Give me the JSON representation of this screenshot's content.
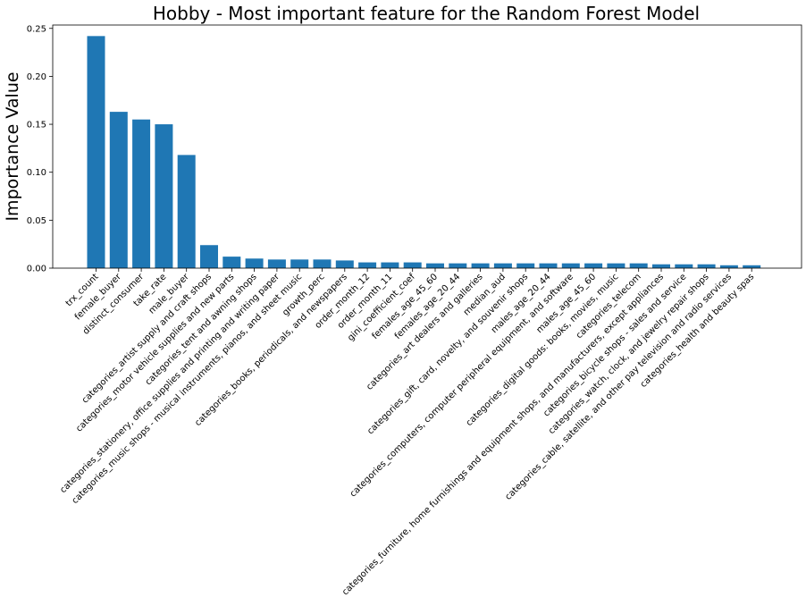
{
  "chart_data": {
    "type": "bar",
    "title": "Hobby - Most important feature for the Random Forest Model",
    "xlabel": "",
    "ylabel": "Importance Value",
    "ylim": [
      0,
      0.25
    ],
    "yticks": [
      "0.00",
      "0.05",
      "0.10",
      "0.15",
      "0.20",
      "0.25"
    ],
    "grid": false,
    "bar_color": "#1f77b4",
    "categories": [
      "trx_count",
      "female_buyer",
      "distinct_consumer",
      "take_rate",
      "male_buyer",
      "categories_artist supply and craft shops",
      "categories_motor vehicle supplies and new parts",
      "categories_tent and awning shops",
      "categories_stationery, office supplies and printing and writing paper",
      "categories_music shops - musical instruments, pianos, and sheet music",
      "growth_perc",
      "categories_books, periodicals, and newspapers",
      "order_month_12",
      "order_month_11",
      "gini_coefficient_coef",
      "females_age_45_60",
      "females_age_20_44",
      "categories_art dealers and galleries",
      "median_aud",
      "categories_gift, card, novelty, and souvenir shops",
      "males_age_20_44",
      "categories_computers, computer peripheral equipment, and software",
      "males_age_45_60",
      "categories_digital goods: books, movies, music",
      "categories_telecom",
      "categories_furniture, home furnishings and equipment shops, and manufacturers, except appliances",
      "categories_bicycle shops - sales and service",
      "categories_watch, clock, and jewelry repair shops",
      "categories_cable, satellite, and other pay television and radio services",
      "categories_health and beauty spas"
    ],
    "values": [
      0.242,
      0.163,
      0.155,
      0.15,
      0.118,
      0.024,
      0.012,
      0.01,
      0.009,
      0.009,
      0.009,
      0.008,
      0.006,
      0.006,
      0.006,
      0.005,
      0.005,
      0.005,
      0.005,
      0.005,
      0.005,
      0.005,
      0.005,
      0.005,
      0.005,
      0.004,
      0.004,
      0.004,
      0.003,
      0.003
    ]
  }
}
